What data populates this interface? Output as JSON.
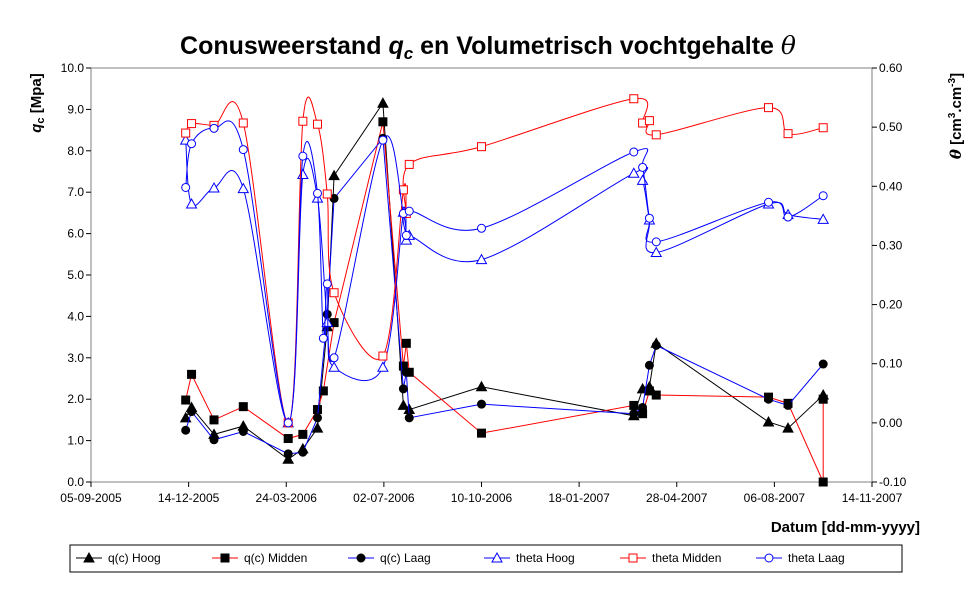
{
  "chart_data": {
    "type": "line",
    "title": {
      "main": "Conusweerstand",
      "q": "q",
      "sub": "c",
      "mid": "en Volumetrisch vochtgehalte",
      "theta": "θ"
    },
    "left_axis": {
      "label": "q",
      "label_sub": "c",
      "label_rest": "[Mpa]",
      "range": [
        0,
        10
      ],
      "ticks": [
        "0.0",
        "1.0",
        "2.0",
        "3.0",
        "4.0",
        "5.0",
        "6.0",
        "7.0",
        "8.0",
        "9.0",
        "10.0"
      ]
    },
    "right_axis": {
      "label": "θ",
      "label_rest": "[cm",
      "label_sup1": "3",
      "label_mid": ".cm",
      "label_sup2": "-3",
      "label_end": "]",
      "range": [
        -0.1,
        0.6
      ],
      "ticks": [
        "-0.10",
        "0.00",
        "0.10",
        "0.20",
        "0.30",
        "0.40",
        "0.50",
        "0.60"
      ]
    },
    "x_axis": {
      "label": "Datum [dd-mm-yyyy]",
      "range": [
        "2005-09-05",
        "2007-11-14"
      ],
      "ticks": [
        "05-09-2005",
        "14-12-2005",
        "24-03-2006",
        "02-07-2006",
        "10-10-2006",
        "18-01-2007",
        "28-04-2007",
        "06-08-2007",
        "14-11-2007"
      ]
    },
    "grid": false,
    "legend_position": "bottom",
    "series": [
      {
        "name": "q(c) Hoog",
        "axis": "left",
        "color": "#000000",
        "marker": "triangle",
        "filled": true,
        "smooth": false,
        "points": [
          [
            "2005-12-11",
            1.55
          ],
          [
            "2005-12-17",
            1.8
          ],
          [
            "2006-01-09",
            1.15
          ],
          [
            "2006-02-08",
            1.35
          ],
          [
            "2006-03-26",
            0.55
          ],
          [
            "2006-04-10",
            0.8
          ],
          [
            "2006-04-25",
            1.3
          ],
          [
            "2006-05-05",
            3.75
          ],
          [
            "2006-05-12",
            7.4
          ],
          [
            "2006-07-01",
            9.15
          ],
          [
            "2006-07-22",
            1.85
          ],
          [
            "2006-07-28",
            1.75
          ],
          [
            "2006-10-10",
            2.3
          ],
          [
            "2007-03-15",
            1.6
          ],
          [
            "2007-03-24",
            2.25
          ],
          [
            "2007-03-31",
            2.3
          ],
          [
            "2007-04-07",
            3.35
          ],
          [
            "2007-07-31",
            1.45
          ],
          [
            "2007-08-20",
            1.3
          ],
          [
            "2007-09-25",
            2.1
          ]
        ]
      },
      {
        "name": "q(c) Midden",
        "axis": "left",
        "color": "#ff0000",
        "marker": "square",
        "filled": true,
        "smooth": false,
        "points": [
          [
            "2005-12-11",
            1.98
          ],
          [
            "2005-12-17",
            2.6
          ],
          [
            "2006-01-09",
            1.5
          ],
          [
            "2006-02-08",
            1.82
          ],
          [
            "2006-03-26",
            1.05
          ],
          [
            "2006-04-10",
            1.15
          ],
          [
            "2006-04-25",
            1.75
          ],
          [
            "2006-05-01",
            2.2
          ],
          [
            "2006-05-12",
            3.85
          ],
          [
            "2006-07-01",
            8.7
          ],
          [
            "2006-07-22",
            2.8
          ],
          [
            "2006-07-25",
            3.35
          ],
          [
            "2006-07-28",
            2.65
          ],
          [
            "2006-10-10",
            1.18
          ],
          [
            "2007-03-15",
            1.85
          ],
          [
            "2007-03-24",
            1.65
          ],
          [
            "2007-03-31",
            2.2
          ],
          [
            "2007-04-07",
            2.1
          ],
          [
            "2007-07-31",
            2.05
          ],
          [
            "2007-08-20",
            1.9
          ],
          [
            "2007-09-25",
            0.0
          ],
          [
            "2007-09-25",
            2.0
          ]
        ]
      },
      {
        "name": "q(c) Laag",
        "axis": "left",
        "color": "#0000ff",
        "marker": "circle",
        "filled": true,
        "smooth": false,
        "points": [
          [
            "2005-12-11",
            1.25
          ],
          [
            "2005-12-17",
            1.7
          ],
          [
            "2006-01-09",
            1.02
          ],
          [
            "2006-02-08",
            1.22
          ],
          [
            "2006-03-26",
            0.68
          ],
          [
            "2006-04-10",
            0.72
          ],
          [
            "2006-04-25",
            1.55
          ],
          [
            "2006-05-05",
            4.05
          ],
          [
            "2006-05-12",
            6.85
          ],
          [
            "2006-07-01",
            8.3
          ],
          [
            "2006-07-22",
            2.25
          ],
          [
            "2006-07-25",
            2.65
          ],
          [
            "2006-07-28",
            1.55
          ],
          [
            "2006-10-10",
            1.88
          ],
          [
            "2007-03-15",
            1.65
          ],
          [
            "2007-03-24",
            1.8
          ],
          [
            "2007-03-31",
            2.82
          ],
          [
            "2007-04-07",
            3.3
          ],
          [
            "2007-07-31",
            2.0
          ],
          [
            "2007-08-20",
            1.85
          ],
          [
            "2007-09-25",
            2.85
          ]
        ]
      },
      {
        "name": "theta Hoog",
        "axis": "right",
        "color": "#0000ff",
        "marker": "triangle",
        "filled": false,
        "smooth": true,
        "points": [
          [
            "2005-12-11",
            0.478
          ],
          [
            "2005-12-17",
            0.37
          ],
          [
            "2006-01-09",
            0.397
          ],
          [
            "2006-02-08",
            0.396
          ],
          [
            "2006-03-26",
            0.0
          ],
          [
            "2006-04-10",
            0.42
          ],
          [
            "2006-04-25",
            0.38
          ],
          [
            "2006-05-05",
            0.17
          ],
          [
            "2006-05-12",
            0.094
          ],
          [
            "2006-07-01",
            0.094
          ],
          [
            "2006-07-22",
            0.356
          ],
          [
            "2006-07-25",
            0.309
          ],
          [
            "2006-07-28",
            0.317
          ],
          [
            "2006-10-10",
            0.276
          ],
          [
            "2007-03-15",
            0.422
          ],
          [
            "2007-03-24",
            0.41
          ],
          [
            "2007-03-31",
            0.343
          ],
          [
            "2007-04-07",
            0.288
          ],
          [
            "2007-07-31",
            0.37
          ],
          [
            "2007-08-20",
            0.352
          ],
          [
            "2007-09-25",
            0.344
          ]
        ]
      },
      {
        "name": "theta Midden",
        "axis": "right",
        "color": "#ff0000",
        "marker": "square",
        "filled": false,
        "smooth": true,
        "points": [
          [
            "2005-12-11",
            0.49
          ],
          [
            "2005-12-17",
            0.506
          ],
          [
            "2006-01-09",
            0.503
          ],
          [
            "2006-02-08",
            0.507
          ],
          [
            "2006-03-26",
            0.0
          ],
          [
            "2006-04-10",
            0.51
          ],
          [
            "2006-04-25",
            0.505
          ],
          [
            "2006-05-05",
            0.387
          ],
          [
            "2006-05-12",
            0.22
          ],
          [
            "2006-07-01",
            0.113
          ],
          [
            "2006-07-22",
            0.394
          ],
          [
            "2006-07-25",
            0.354
          ],
          [
            "2006-07-28",
            0.437
          ],
          [
            "2006-10-10",
            0.467
          ],
          [
            "2007-03-15",
            0.548
          ],
          [
            "2007-03-24",
            0.507
          ],
          [
            "2007-03-31",
            0.511
          ],
          [
            "2007-04-07",
            0.487
          ],
          [
            "2007-07-31",
            0.533
          ],
          [
            "2007-08-20",
            0.489
          ],
          [
            "2007-09-25",
            0.499
          ]
        ]
      },
      {
        "name": "theta Laag",
        "axis": "right",
        "color": "#0000ff",
        "marker": "circle",
        "filled": false,
        "smooth": true,
        "points": [
          [
            "2005-12-11",
            0.398
          ],
          [
            "2005-12-17",
            0.472
          ],
          [
            "2006-01-09",
            0.498
          ],
          [
            "2006-02-08",
            0.462
          ],
          [
            "2006-03-26",
            0.0
          ],
          [
            "2006-04-10",
            0.451
          ],
          [
            "2006-04-25",
            0.388
          ],
          [
            "2006-05-01",
            0.143
          ],
          [
            "2006-05-05",
            0.235
          ],
          [
            "2006-05-12",
            0.11
          ],
          [
            "2006-07-01",
            0.478
          ],
          [
            "2006-07-22",
            0.354
          ],
          [
            "2006-07-25",
            0.317
          ],
          [
            "2006-07-28",
            0.358
          ],
          [
            "2006-10-10",
            0.329
          ],
          [
            "2007-03-15",
            0.458
          ],
          [
            "2007-03-24",
            0.432
          ],
          [
            "2007-03-31",
            0.346
          ],
          [
            "2007-04-07",
            0.306
          ],
          [
            "2007-07-31",
            0.373
          ],
          [
            "2007-08-20",
            0.348
          ],
          [
            "2007-09-25",
            0.384
          ]
        ]
      }
    ]
  }
}
